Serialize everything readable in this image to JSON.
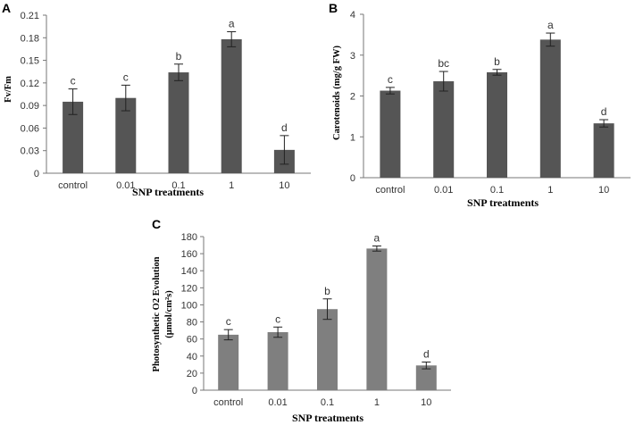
{
  "chart_data": [
    {
      "panel": "A",
      "type": "bar",
      "categories": [
        "control",
        "0.01",
        "0.1",
        "1",
        "10"
      ],
      "values": [
        0.095,
        0.1,
        0.134,
        0.178,
        0.031
      ],
      "errors": [
        0.017,
        0.017,
        0.011,
        0.01,
        0.019
      ],
      "significance": [
        "c",
        "c",
        "b",
        "a",
        "d"
      ],
      "yticks": [
        "0",
        "0.03",
        "0.06",
        "0.09",
        "0.12",
        "0.15",
        "0.18",
        "0.21"
      ],
      "ylim": [
        0,
        0.21
      ],
      "ylabel": "Fv/Fm",
      "xlabel": "SNP treatments",
      "bar_color": "#555555"
    },
    {
      "panel": "B",
      "type": "bar",
      "categories": [
        "control",
        "0.01",
        "0.1",
        "1",
        "10"
      ],
      "values": [
        2.13,
        2.36,
        2.58,
        3.38,
        1.33
      ],
      "errors": [
        0.08,
        0.24,
        0.07,
        0.16,
        0.09
      ],
      "significance": [
        "c",
        "bc",
        "b",
        "a",
        "d"
      ],
      "yticks": [
        "0",
        "1",
        "2",
        "3",
        "4"
      ],
      "ylim": [
        0,
        4
      ],
      "ylabel": "Carotenoids (mg/g FW)",
      "xlabel": "SNP treatments",
      "bar_color": "#555555"
    },
    {
      "panel": "C",
      "type": "bar",
      "categories": [
        "control",
        "0.01",
        "0.1",
        "1",
        "10"
      ],
      "values": [
        65,
        68,
        95,
        166,
        29
      ],
      "errors": [
        6,
        6,
        12,
        3,
        4
      ],
      "significance": [
        "c",
        "c",
        "b",
        "a",
        "d"
      ],
      "yticks": [
        "0",
        "20",
        "40",
        "60",
        "80",
        "100",
        "120",
        "140",
        "160",
        "180"
      ],
      "ylim": [
        0,
        180
      ],
      "ylabel_line1": "Photosynthetic O2 Evolution",
      "ylabel_line2": "(µmol/cm²s)",
      "xlabel": "SNP treatments",
      "bar_color": "#7f7f7f"
    }
  ]
}
